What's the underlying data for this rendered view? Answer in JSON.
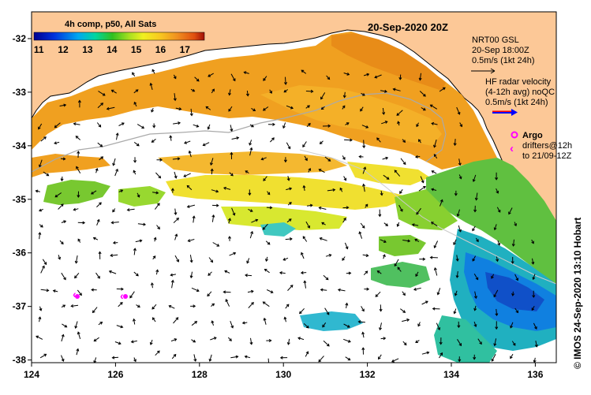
{
  "header": {
    "composite_label": "4h comp, p50, All Sats",
    "date_label": "20-Sep-2020 20Z"
  },
  "colorbar": {
    "tick_labels": [
      "11",
      "12",
      "13",
      "14",
      "15",
      "16",
      "17"
    ],
    "min": 10.8,
    "max": 17.8
  },
  "legend": {
    "nrt_title": "NRT00 GSL",
    "nrt_time": "20-Sep 18:00Z",
    "nrt_scale": "0.5m/s (1kt 24h)",
    "hf_title": "HF radar velocity",
    "hf_avg": "(4-12h avg) noQC",
    "hf_scale": "0.5m/s (1kt 24h)",
    "argo_label": "Argo",
    "drifters_label": "drifters@12h",
    "drifters_to": "to 21/09-12Z",
    "argo_color": "#ff00ff",
    "hf_arrow_color": "#0000ff"
  },
  "credit": "© IMOS 24-Sep-2020 13:10 Hobart",
  "axes": {
    "x_ticks": [
      "124",
      "126",
      "128",
      "130",
      "132",
      "134",
      "136"
    ],
    "y_ticks": [
      "-32",
      "-33",
      "-34",
      "-35",
      "-36",
      "-37",
      "-38"
    ],
    "lon_range": [
      124,
      136.5
    ],
    "lat_range": [
      -31.5,
      -38.05
    ]
  },
  "colors": {
    "land": "#fcc897",
    "ocean": "#ffffff",
    "frame": "#000000"
  }
}
